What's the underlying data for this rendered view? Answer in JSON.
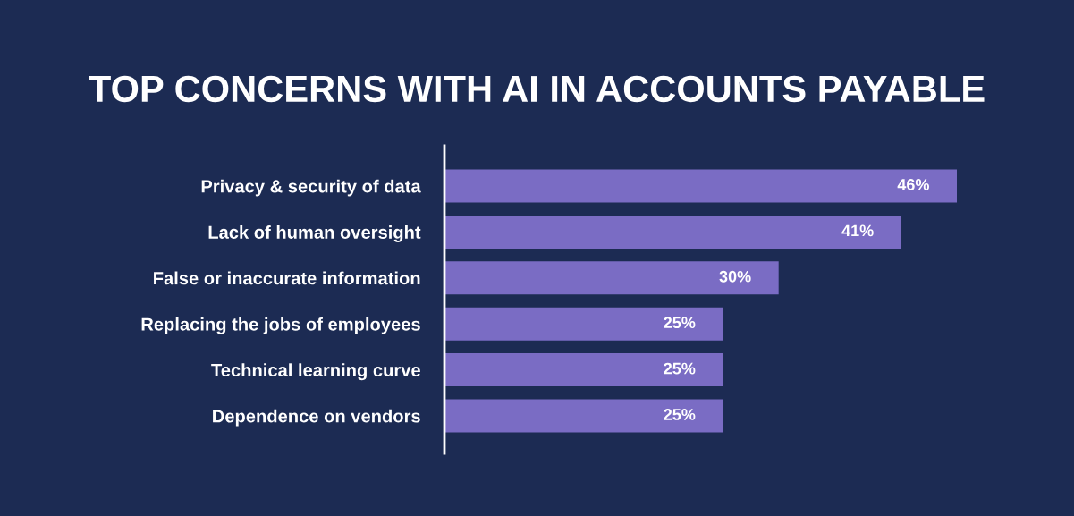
{
  "chart_data": {
    "type": "bar",
    "orientation": "horizontal",
    "title": "TOP CONCERNS WITH AI IN ACCOUNTS PAYABLE",
    "categories": [
      "Privacy & security of data",
      "Lack of human oversight",
      "False or inaccurate information",
      "Replacing the jobs of employees",
      "Technical learning curve",
      "Dependence on vendors"
    ],
    "values": [
      46,
      41,
      30,
      25,
      25,
      25
    ],
    "value_labels": [
      "46%",
      "41%",
      "30%",
      "25%",
      "25%",
      "25%"
    ],
    "color": "#7a6cc4",
    "grid": false,
    "legend": false,
    "tick_labels": "y"
  }
}
